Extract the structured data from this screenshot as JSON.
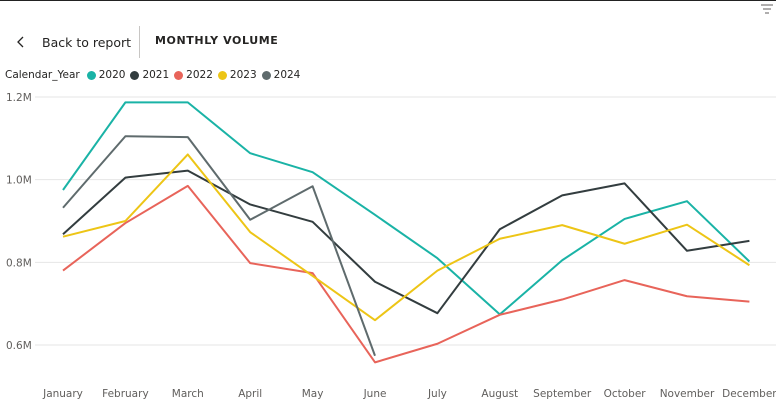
{
  "header": {
    "back_label": "Back to report",
    "title": "MONTHLY VOLUME"
  },
  "icons": {
    "back": "chevron-left-icon",
    "filter": "filter-icon"
  },
  "legend": {
    "title": "Calendar_Year",
    "items": [
      {
        "label": "2020",
        "color": "#1AB3A6"
      },
      {
        "label": "2021",
        "color": "#333D3F"
      },
      {
        "label": "2022",
        "color": "#E8645A"
      },
      {
        "label": "2023",
        "color": "#EDC516"
      },
      {
        "label": "2024",
        "color": "#5F6B6D"
      }
    ]
  },
  "chart_data": {
    "type": "line",
    "title": "MONTHLY VOLUME",
    "xlabel": "",
    "ylabel": "",
    "categories": [
      "January",
      "February",
      "March",
      "April",
      "May",
      "June",
      "July",
      "August",
      "September",
      "October",
      "November",
      "December"
    ],
    "ylim": [
      550000,
      1200000
    ],
    "yticks": [
      600000,
      800000,
      1000000,
      1200000
    ],
    "ytick_labels": [
      "0.6M",
      "0.8M",
      "1.0M",
      "1.2M"
    ],
    "grid": true,
    "legend_position": "top-left",
    "series": [
      {
        "name": "2020",
        "color": "#1AB3A6",
        "values": [
          975000,
          1187000,
          1187000,
          1064000,
          1018000,
          915000,
          810000,
          674000,
          805000,
          905000,
          948000,
          802000
        ]
      },
      {
        "name": "2021",
        "color": "#333D3F",
        "values": [
          868000,
          1005000,
          1022000,
          940000,
          898000,
          753000,
          677000,
          880000,
          962000,
          991000,
          828000,
          852000
        ]
      },
      {
        "name": "2022",
        "color": "#E8645A",
        "values": [
          780000,
          895000,
          985000,
          798000,
          774000,
          558000,
          603000,
          673000,
          710000,
          757000,
          718000,
          705000
        ]
      },
      {
        "name": "2023",
        "color": "#EDC516",
        "values": [
          862000,
          900000,
          1061000,
          873000,
          767000,
          660000,
          780000,
          857000,
          890000,
          845000,
          891000,
          793000
        ]
      },
      {
        "name": "2024",
        "color": "#5F6B6D",
        "values": [
          932000,
          1105000,
          1103000,
          903000,
          984000,
          574000,
          null,
          null,
          null,
          null,
          null,
          null
        ]
      }
    ]
  }
}
